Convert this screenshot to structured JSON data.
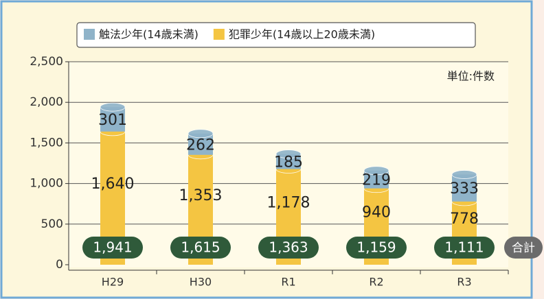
{
  "chart_data": {
    "type": "bar",
    "unit_label": "単位:件数",
    "categories": [
      "H29",
      "H30",
      "R1",
      "R2",
      "R3"
    ],
    "series": [
      {
        "name": "犯罪少年(14歳以上20歳未満)",
        "color": "#f4c542",
        "values": [
          1640,
          1353,
          1178,
          940,
          778
        ],
        "value_labels": [
          "1,640",
          "1,353",
          "1,178",
          "940",
          "778"
        ]
      },
      {
        "name": "触法少年(14歳未満)",
        "color": "#8fb3c9",
        "values": [
          301,
          262,
          185,
          219,
          333
        ],
        "value_labels": [
          "301",
          "262",
          "185",
          "219",
          "333"
        ]
      }
    ],
    "total_label": "合計",
    "totals": [
      1941,
      1615,
      1363,
      1159,
      1111
    ],
    "total_labels": [
      "1,941",
      "1,615",
      "1,363",
      "1,159",
      "1,111"
    ],
    "ylim": [
      0,
      2500
    ],
    "yticks": [
      0,
      {
        "value": 500,
        "label": "500"
      },
      {
        "value": 1000,
        "label": "1,000"
      },
      {
        "value": 1500,
        "label": "1,500"
      },
      {
        "value": 2000,
        "label": "2,000"
      },
      {
        "value": 2500,
        "label": "2,500"
      }
    ],
    "grid": true
  }
}
